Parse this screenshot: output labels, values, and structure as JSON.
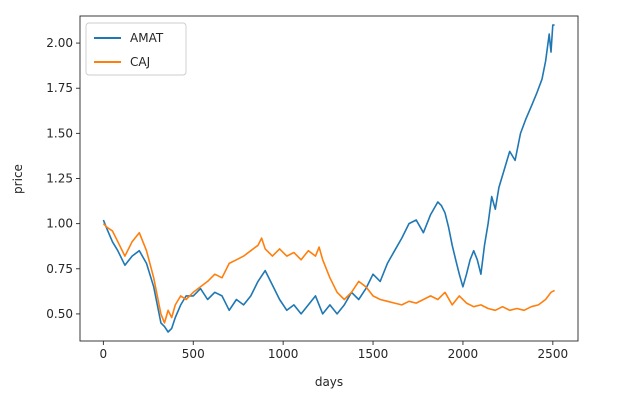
{
  "chart_data": {
    "type": "line",
    "xlabel": "days",
    "ylabel": "price",
    "xlim": [
      -130,
      2640
    ],
    "ylim": [
      0.35,
      2.15
    ],
    "xticks": [
      0,
      500,
      1000,
      1500,
      2000,
      2500
    ],
    "xtick_labels": [
      "0",
      "500",
      "1000",
      "1500",
      "2000",
      "2500"
    ],
    "yticks": [
      0.5,
      0.75,
      1.0,
      1.25,
      1.5,
      1.75,
      2.0
    ],
    "ytick_labels": [
      "0.50",
      "0.75",
      "1.00",
      "1.25",
      "1.50",
      "1.75",
      "2.00"
    ],
    "grid": false,
    "legend_position": "upper-left",
    "series": [
      {
        "name": "AMAT",
        "color": "#1f77b4",
        "x": [
          0,
          20,
          50,
          80,
          120,
          160,
          200,
          240,
          280,
          300,
          320,
          340,
          360,
          380,
          400,
          430,
          460,
          500,
          540,
          580,
          620,
          660,
          700,
          740,
          780,
          820,
          860,
          900,
          940,
          980,
          1020,
          1060,
          1100,
          1140,
          1180,
          1220,
          1260,
          1300,
          1340,
          1380,
          1420,
          1460,
          1500,
          1540,
          1580,
          1620,
          1660,
          1700,
          1740,
          1780,
          1820,
          1860,
          1880,
          1900,
          1920,
          1940,
          1960,
          1980,
          2000,
          2020,
          2040,
          2060,
          2080,
          2100,
          2120,
          2140,
          2160,
          2180,
          2200,
          2230,
          2260,
          2290,
          2320,
          2350,
          2380,
          2410,
          2440,
          2460,
          2480,
          2490,
          2500,
          2510
        ],
        "y": [
          1.02,
          0.97,
          0.9,
          0.85,
          0.77,
          0.82,
          0.85,
          0.78,
          0.65,
          0.55,
          0.45,
          0.43,
          0.4,
          0.42,
          0.48,
          0.55,
          0.6,
          0.6,
          0.64,
          0.58,
          0.62,
          0.6,
          0.52,
          0.58,
          0.55,
          0.6,
          0.68,
          0.74,
          0.66,
          0.58,
          0.52,
          0.55,
          0.5,
          0.55,
          0.6,
          0.5,
          0.55,
          0.5,
          0.55,
          0.62,
          0.58,
          0.64,
          0.72,
          0.68,
          0.78,
          0.85,
          0.92,
          1.0,
          1.02,
          0.95,
          1.05,
          1.12,
          1.1,
          1.06,
          0.98,
          0.88,
          0.8,
          0.72,
          0.65,
          0.72,
          0.8,
          0.85,
          0.8,
          0.72,
          0.88,
          1.0,
          1.15,
          1.08,
          1.2,
          1.3,
          1.4,
          1.35,
          1.5,
          1.58,
          1.65,
          1.72,
          1.8,
          1.9,
          2.05,
          1.95,
          2.1,
          2.1
        ]
      },
      {
        "name": "CAJ",
        "color": "#ff7f0e",
        "x": [
          0,
          20,
          50,
          80,
          120,
          160,
          200,
          240,
          280,
          300,
          320,
          340,
          360,
          380,
          400,
          430,
          460,
          500,
          540,
          580,
          620,
          660,
          700,
          740,
          780,
          820,
          860,
          880,
          900,
          940,
          980,
          1020,
          1060,
          1100,
          1140,
          1180,
          1200,
          1220,
          1260,
          1300,
          1340,
          1380,
          1420,
          1460,
          1500,
          1540,
          1580,
          1620,
          1660,
          1700,
          1740,
          1780,
          1820,
          1860,
          1900,
          1940,
          1980,
          2020,
          2060,
          2100,
          2140,
          2180,
          2220,
          2260,
          2300,
          2340,
          2380,
          2420,
          2460,
          2490,
          2510
        ],
        "y": [
          1.0,
          0.98,
          0.96,
          0.9,
          0.82,
          0.9,
          0.95,
          0.85,
          0.7,
          0.6,
          0.5,
          0.45,
          0.52,
          0.48,
          0.55,
          0.6,
          0.58,
          0.62,
          0.65,
          0.68,
          0.72,
          0.7,
          0.78,
          0.8,
          0.82,
          0.85,
          0.88,
          0.92,
          0.86,
          0.82,
          0.86,
          0.82,
          0.84,
          0.8,
          0.85,
          0.82,
          0.87,
          0.8,
          0.7,
          0.62,
          0.58,
          0.62,
          0.68,
          0.65,
          0.6,
          0.58,
          0.57,
          0.56,
          0.55,
          0.57,
          0.56,
          0.58,
          0.6,
          0.58,
          0.62,
          0.55,
          0.6,
          0.56,
          0.54,
          0.55,
          0.53,
          0.52,
          0.54,
          0.52,
          0.53,
          0.52,
          0.54,
          0.55,
          0.58,
          0.62,
          0.63
        ]
      }
    ]
  }
}
